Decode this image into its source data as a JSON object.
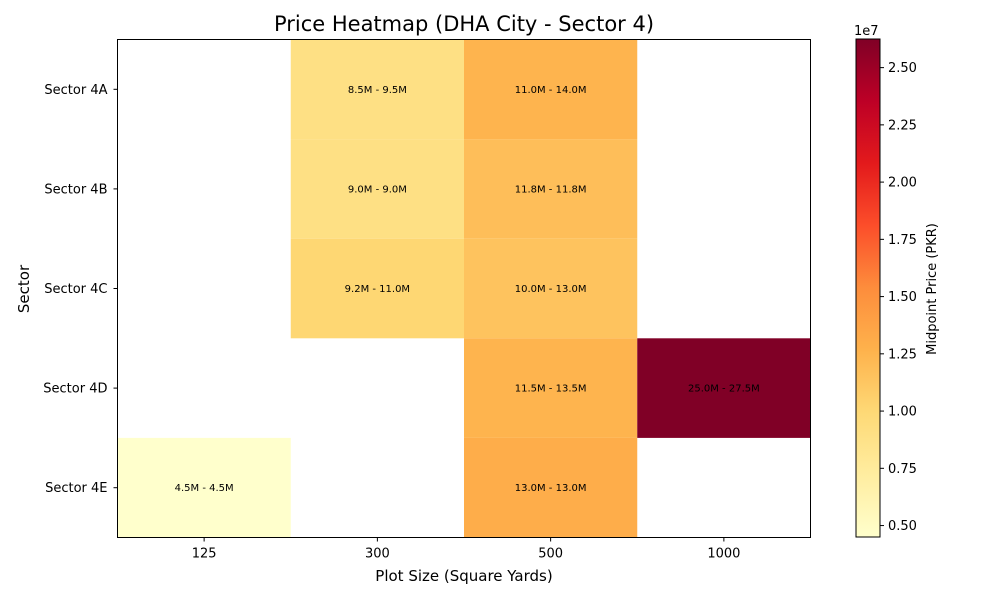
{
  "chart_data": {
    "type": "heatmap",
    "title": "Price Heatmap (DHA City - Sector 4)",
    "xlabel": "Plot Size (Square Yards)",
    "ylabel": "Sector",
    "x_categories": [
      "125",
      "300",
      "500",
      "1000"
    ],
    "y_categories": [
      "Sector 4A",
      "Sector 4B",
      "Sector 4C",
      "Sector 4D",
      "Sector 4E"
    ],
    "cells": [
      {
        "row": 0,
        "col": 1,
        "min": 8500000,
        "max": 9500000,
        "label": "8.5M - 9.5M"
      },
      {
        "row": 0,
        "col": 2,
        "min": 11000000,
        "max": 14000000,
        "label": "11.0M - 14.0M"
      },
      {
        "row": 1,
        "col": 1,
        "min": 9000000,
        "max": 9000000,
        "label": "9.0M - 9.0M"
      },
      {
        "row": 1,
        "col": 2,
        "min": 11800000,
        "max": 11800000,
        "label": "11.8M - 11.8M"
      },
      {
        "row": 2,
        "col": 1,
        "min": 9200000,
        "max": 11000000,
        "label": "9.2M - 11.0M"
      },
      {
        "row": 2,
        "col": 2,
        "min": 10000000,
        "max": 13000000,
        "label": "10.0M - 13.0M"
      },
      {
        "row": 3,
        "col": 2,
        "min": 11500000,
        "max": 13500000,
        "label": "11.5M - 13.5M"
      },
      {
        "row": 3,
        "col": 3,
        "min": 25000000,
        "max": 27500000,
        "label": "25.0M - 27.5M"
      },
      {
        "row": 4,
        "col": 0,
        "min": 4500000,
        "max": 4500000,
        "label": "4.5M - 4.5M"
      },
      {
        "row": 4,
        "col": 2,
        "min": 13000000,
        "max": 13000000,
        "label": "13.0M - 13.0M"
      }
    ],
    "colorbar": {
      "label": "Midpoint Price (PKR)",
      "exponent_label": "1e7",
      "range": [
        4500000,
        26250000
      ],
      "ticks": [
        0.5,
        0.75,
        1.0,
        1.25,
        1.5,
        1.75,
        2.0,
        2.25,
        2.5
      ],
      "tick_labels": [
        "0.50",
        "0.75",
        "1.00",
        "1.25",
        "1.50",
        "1.75",
        "2.00",
        "2.25",
        "2.50"
      ],
      "colormap": "YlOrRd",
      "colors": [
        "#ffffcc",
        "#ffeda0",
        "#fed976",
        "#feb24c",
        "#fd8d3c",
        "#fc4e2a",
        "#e31a1c",
        "#bd0026",
        "#800026"
      ]
    }
  }
}
